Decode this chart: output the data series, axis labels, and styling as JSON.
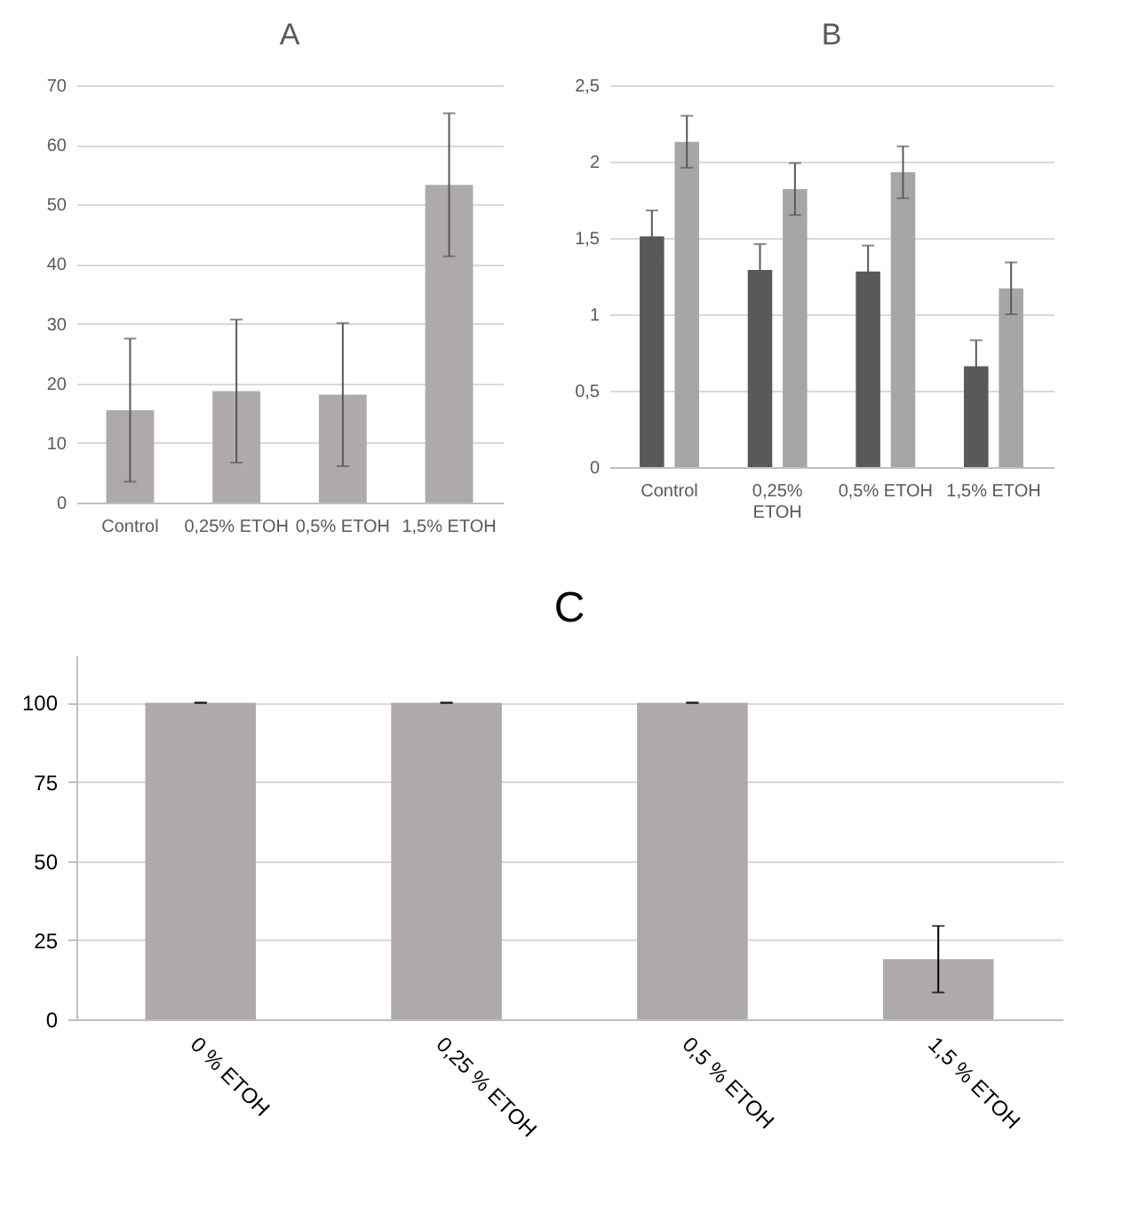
{
  "chart_data": [
    {
      "type": "bar",
      "title": "A",
      "categories": [
        "Control",
        "0,25% ETOH",
        "0,5% ETOH",
        "1,5% ETOH"
      ],
      "values": [
        15.5,
        18.7,
        18.1,
        53.3
      ],
      "errors": [
        12,
        12,
        12,
        12
      ],
      "color": "#aeaaaa",
      "ylim": [
        0,
        70
      ],
      "yticks": [
        0,
        10,
        20,
        30,
        40,
        50,
        60,
        70
      ],
      "grid": "y"
    },
    {
      "type": "bar",
      "title": "B",
      "categories": [
        "Control",
        "0,25% ETOH",
        "0,5% ETOH",
        "1,5% ETOH"
      ],
      "series": [
        {
          "color": "#595959",
          "values": [
            1.51,
            1.29,
            1.28,
            0.66
          ],
          "errors": [
            0.17,
            0.17,
            0.17,
            0.17
          ]
        },
        {
          "color": "#a6a6a6",
          "values": [
            2.13,
            1.82,
            1.93,
            1.17
          ],
          "errors": [
            0.17,
            0.17,
            0.17,
            0.17
          ]
        }
      ],
      "ylim": [
        0,
        2.5
      ],
      "yticks": [
        0,
        {
          "value": 0.5,
          "label": "0,5"
        },
        1,
        {
          "value": 1.5,
          "label": "1,5"
        },
        2,
        {
          "value": 2.5,
          "label": "2,5"
        }
      ],
      "grid": "y"
    },
    {
      "type": "bar",
      "title": "C",
      "categories": [
        "0 % ETOH",
        "0,25 % ETOH",
        "0,5 % ETOH",
        "1,5 % ETOH"
      ],
      "values": [
        100,
        100,
        100,
        19
      ],
      "errors": [
        0,
        0,
        0,
        10.5
      ],
      "color": "#aeaaaa",
      "ylim": [
        0,
        115
      ],
      "yticks": [
        0,
        25,
        50,
        75,
        100
      ],
      "grid": "y"
    }
  ]
}
